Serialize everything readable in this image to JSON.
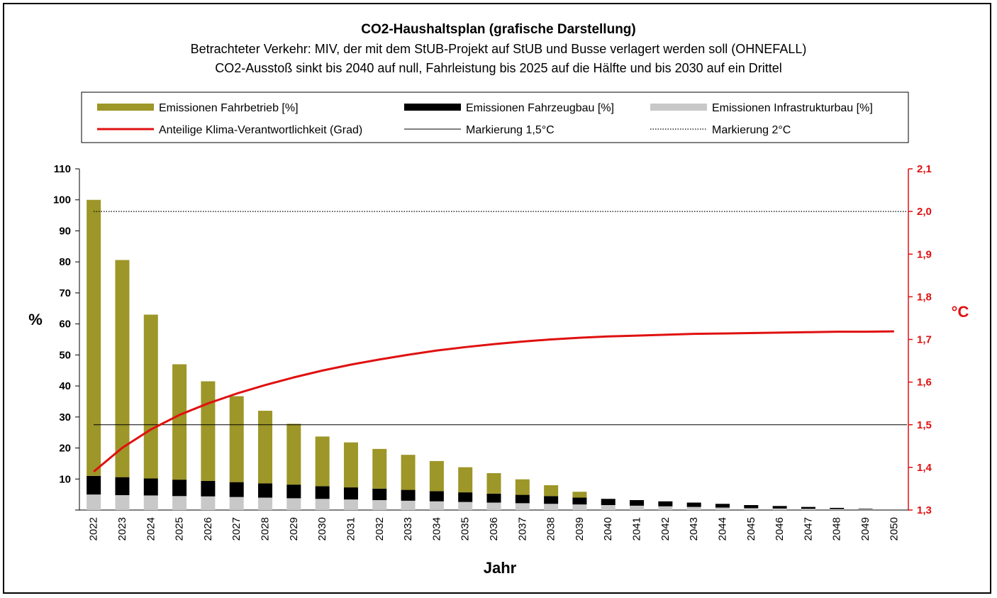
{
  "chart_data": {
    "type": "bar",
    "title": "CO2-Haushaltsplan (grafische Darstellung)",
    "subtitle_1": "Betrachteter Verkehr: MIV, der mit dem StUB-Projekt auf StUB und Busse verlagert werden soll (OHNEFALL)",
    "subtitle_2": "CO2-Ausstoß sinkt bis 2040 auf null, Fahrleistung bis 2025 auf die Hälfte und bis 2030 auf ein Drittel",
    "xlabel": "Jahr",
    "ylabel": "%",
    "y2label": "°C",
    "ylim": [
      0,
      110
    ],
    "y2lim": [
      1.3,
      2.1
    ],
    "y_ticks": [
      10,
      20,
      30,
      40,
      50,
      60,
      70,
      80,
      90,
      100,
      110
    ],
    "y2_ticks": [
      "1,3",
      "1,4",
      "1,5",
      "1,6",
      "1,7",
      "1,8",
      "1,9",
      "2,0",
      "2,1"
    ],
    "categories": [
      "2022",
      "2023",
      "2024",
      "2025",
      "2026",
      "2027",
      "2028",
      "2029",
      "2030",
      "2031",
      "2032",
      "2033",
      "2034",
      "2035",
      "2036",
      "2037",
      "2038",
      "2039",
      "2040",
      "2041",
      "2042",
      "2043",
      "2044",
      "2045",
      "2046",
      "2047",
      "2048",
      "2049",
      "2050"
    ],
    "series": [
      {
        "name": "Emissionen Infrastrukturbau [%]",
        "color": "#c8c8c8",
        "values": [
          5.0,
          4.8,
          4.7,
          4.5,
          4.4,
          4.2,
          4.0,
          3.8,
          3.6,
          3.4,
          3.2,
          3.0,
          2.8,
          2.6,
          2.4,
          2.2,
          2.0,
          1.8,
          1.6,
          1.4,
          1.2,
          1.0,
          0.8,
          0.6,
          0.5,
          0.4,
          0.3,
          0.2,
          0
        ]
      },
      {
        "name": "Emissionen Fahrzeugbau [%]",
        "color": "#000000",
        "values": [
          6.0,
          5.8,
          5.5,
          5.3,
          5.0,
          4.8,
          4.6,
          4.4,
          4.1,
          3.9,
          3.7,
          3.5,
          3.3,
          3.1,
          2.9,
          2.7,
          2.5,
          2.2,
          2.0,
          1.8,
          1.6,
          1.4,
          1.2,
          1.0,
          0.8,
          0.6,
          0.4,
          0.2,
          0
        ]
      },
      {
        "name": "Emissionen Fahrbetrieb [%]",
        "color": "#9d9628",
        "values": [
          89.0,
          70.0,
          52.8,
          37.2,
          32.1,
          27.7,
          23.4,
          19.6,
          16.0,
          14.5,
          12.8,
          11.3,
          9.7,
          8.1,
          6.6,
          5.0,
          3.5,
          1.9,
          0,
          0,
          0,
          0,
          0,
          0,
          0,
          0,
          0,
          0,
          0
        ]
      }
    ],
    "line_series": {
      "name": "Anteilige Klima-Verantwortlichkeit (Grad)",
      "color": "#e01010",
      "axis": "right",
      "values": [
        1.39,
        1.446,
        1.489,
        1.523,
        1.55,
        1.573,
        1.593,
        1.611,
        1.627,
        1.641,
        1.653,
        1.664,
        1.674,
        1.682,
        1.689,
        1.695,
        1.7,
        1.704,
        1.707,
        1.709,
        1.711,
        1.713,
        1.714,
        1.715,
        1.716,
        1.717,
        1.718,
        1.718,
        1.719
      ]
    },
    "reference_lines": [
      {
        "name": "Markierung 1,5°C",
        "value": 1.5,
        "style": "solid"
      },
      {
        "name": "Markierung 2°C",
        "value": 2.0,
        "style": "dotted"
      }
    ],
    "legend": [
      {
        "label": "Emissionen Fahrbetrieb [%]",
        "kind": "bar",
        "color": "#9d9628"
      },
      {
        "label": "Emissionen Fahrzeugbau [%]",
        "kind": "bar",
        "color": "#000000"
      },
      {
        "label": "Emissionen Infrastrukturbau [%]",
        "kind": "bar",
        "color": "#c8c8c8"
      },
      {
        "label": "Anteilige Klima-Verantwortlichkeit (Grad)",
        "kind": "line-thick",
        "color": "#e01010"
      },
      {
        "label": "Markierung 1,5°C",
        "kind": "line-solid",
        "color": "#000000"
      },
      {
        "label": "Markierung 2°C",
        "kind": "line-dotted",
        "color": "#000000"
      }
    ],
    "legend_position": "top",
    "right_axis_color": "#e01010"
  }
}
